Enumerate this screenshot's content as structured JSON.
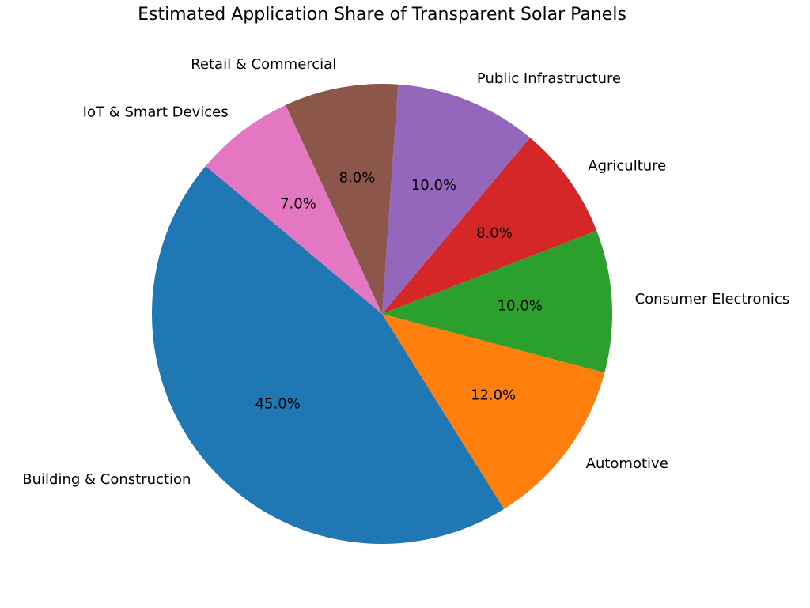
{
  "chart_data": {
    "type": "pie",
    "title": "Estimated Application Share of Transparent Solar Panels",
    "categories": [
      "Building & Construction",
      "Automotive",
      "Consumer Electronics",
      "Agriculture",
      "Public Infrastructure",
      "Retail & Commercial",
      "IoT & Smart Devices"
    ],
    "values": [
      45,
      12,
      10,
      8,
      10,
      8,
      7
    ],
    "value_labels": [
      "45.0%",
      "12.0%",
      "10.0%",
      "8.0%",
      "10.0%",
      "8.0%",
      "7.0%"
    ],
    "colors": [
      "#1f77b4",
      "#ff7f0e",
      "#2ca02c",
      "#d62728",
      "#9467bd",
      "#8c564b",
      "#e377c2"
    ]
  }
}
